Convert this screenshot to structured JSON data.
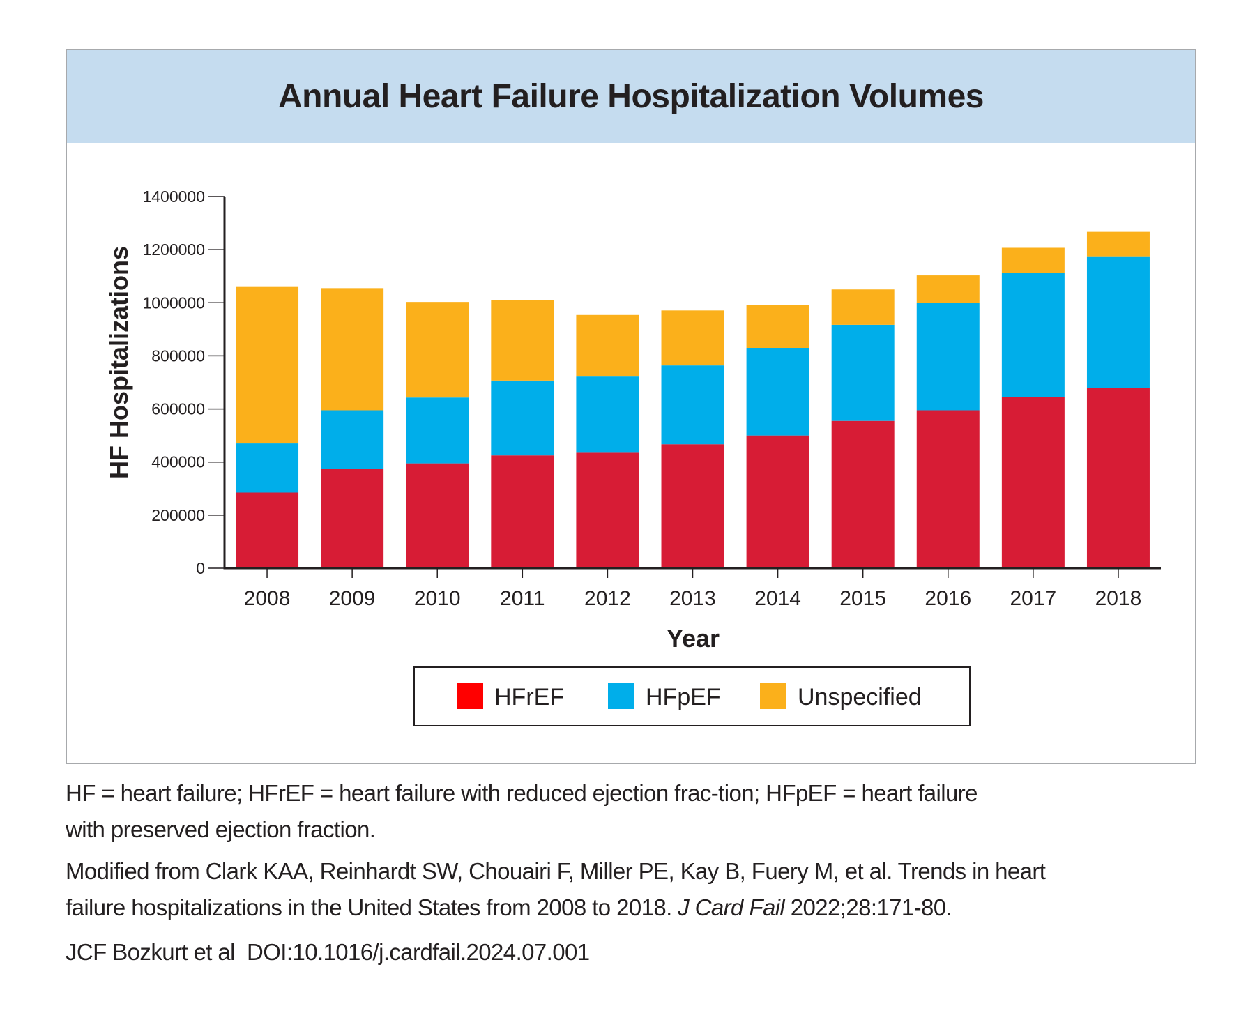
{
  "colors": {
    "HFrEF": "#d71c35",
    "HFpEF": "#00aeea",
    "Unspecified": "#fbb01b",
    "title_band": "#c5dcef",
    "legend_hfref_swatch": "#ff0000"
  },
  "chart_data": {
    "type": "bar",
    "stacked": true,
    "title": "Annual Heart Failure Hospitalization Volumes",
    "xlabel": "Year",
    "ylabel": "HF Hospitalizations",
    "ylim": [
      0,
      1400000
    ],
    "yticks": [
      "0",
      "200000",
      "400000",
      "600000",
      "800000",
      "1000000",
      "1200000",
      "1400000"
    ],
    "ytick_values": [
      0,
      200000,
      400000,
      600000,
      800000,
      1000000,
      1200000,
      1400000
    ],
    "grid": false,
    "legend_position": "bottom",
    "categories": [
      "2008",
      "2009",
      "2010",
      "2011",
      "2012",
      "2013",
      "2014",
      "2015",
      "2016",
      "2017",
      "2018"
    ],
    "series": [
      {
        "name": "HFrEF",
        "values": [
          285000,
          375000,
          395000,
          425000,
          435000,
          467000,
          500000,
          555000,
          595000,
          645000,
          680000
        ]
      },
      {
        "name": "HFpEF",
        "values": [
          185000,
          220000,
          248000,
          282000,
          287000,
          297000,
          330000,
          362000,
          405000,
          467000,
          495000
        ]
      },
      {
        "name": "Unspecified",
        "values": [
          592000,
          460000,
          360000,
          302000,
          232000,
          207000,
          162000,
          133000,
          103000,
          95000,
          92000
        ]
      }
    ]
  },
  "caption": {
    "line1": "HF = heart failure; HFrEF = heart failure with reduced ejection frac-tion; HFpEF = heart failure",
    "line2": "with preserved ejection fraction.",
    "line3": "Modified from Clark KAA, Reinhardt SW, Chouairi F, Miller PE, Kay B, Fuery M, et al. Trends in heart",
    "line4_text": "failure hospitalizations in the United States from 2008 to 2018. ",
    "line4_journal": "J Card Fail",
    "line4_ref": " 2022;28:171-80.",
    "citation": "JCF Bozkurt et al  DOI:10.1016/j.cardfail.2024.07.001"
  }
}
